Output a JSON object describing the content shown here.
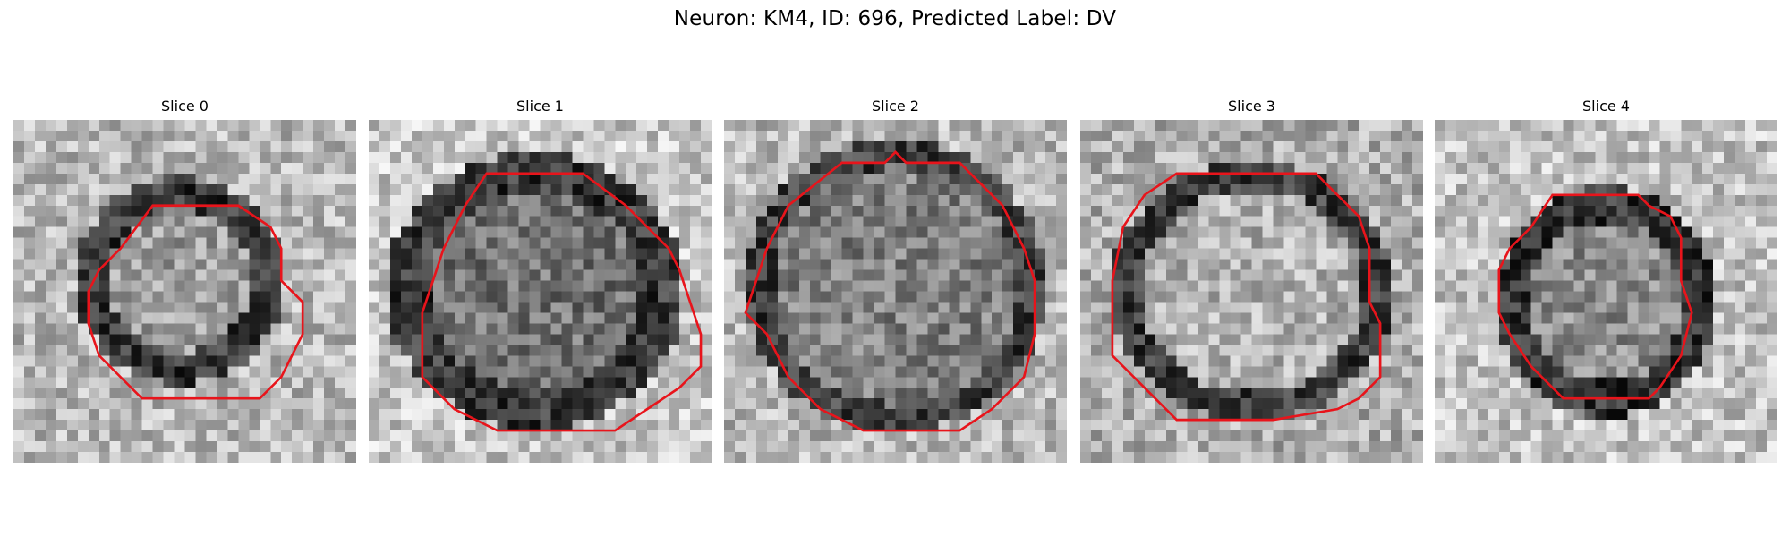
{
  "figure": {
    "title": "Neuron: KM4, ID: 696, Predicted Label: DV",
    "contour_color": "#e8141b"
  },
  "slices": [
    {
      "label": "Slice 0"
    },
    {
      "label": "Slice 1"
    },
    {
      "label": "Slice 2"
    },
    {
      "label": "Slice 3"
    },
    {
      "label": "Slice 4"
    }
  ]
}
